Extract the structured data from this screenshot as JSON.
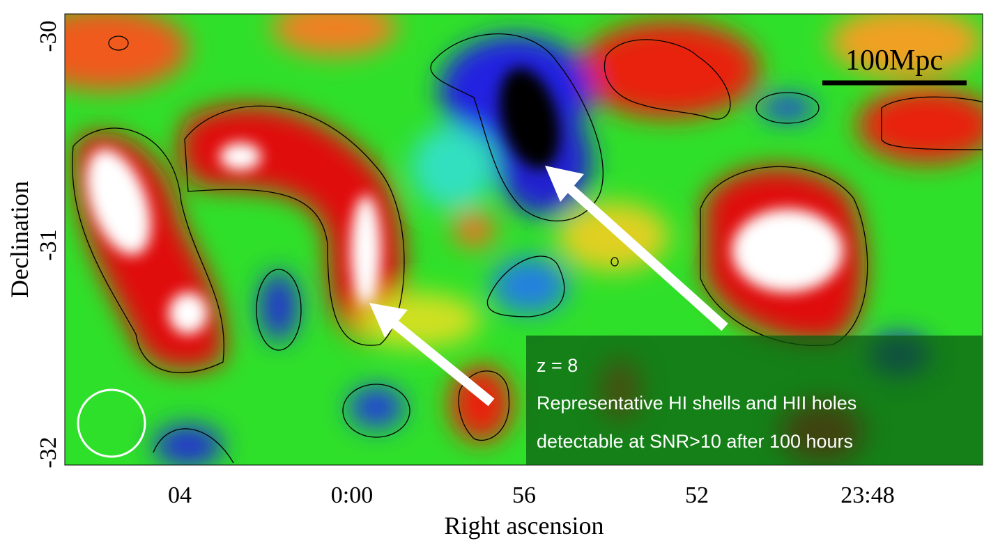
{
  "figure": {
    "y_axis": {
      "label": "Declination",
      "ticks": [
        "-30",
        "-31",
        "-32"
      ]
    },
    "x_axis": {
      "label": "Right ascension",
      "ticks": [
        "04",
        "0:00",
        "56",
        "52",
        "23:48"
      ]
    },
    "scale_bar": "100Mpc",
    "annotation": [
      "z = 8",
      "Representative HI shells and HII holes",
      "detectable at SNR>10 after 100 hours"
    ]
  }
}
